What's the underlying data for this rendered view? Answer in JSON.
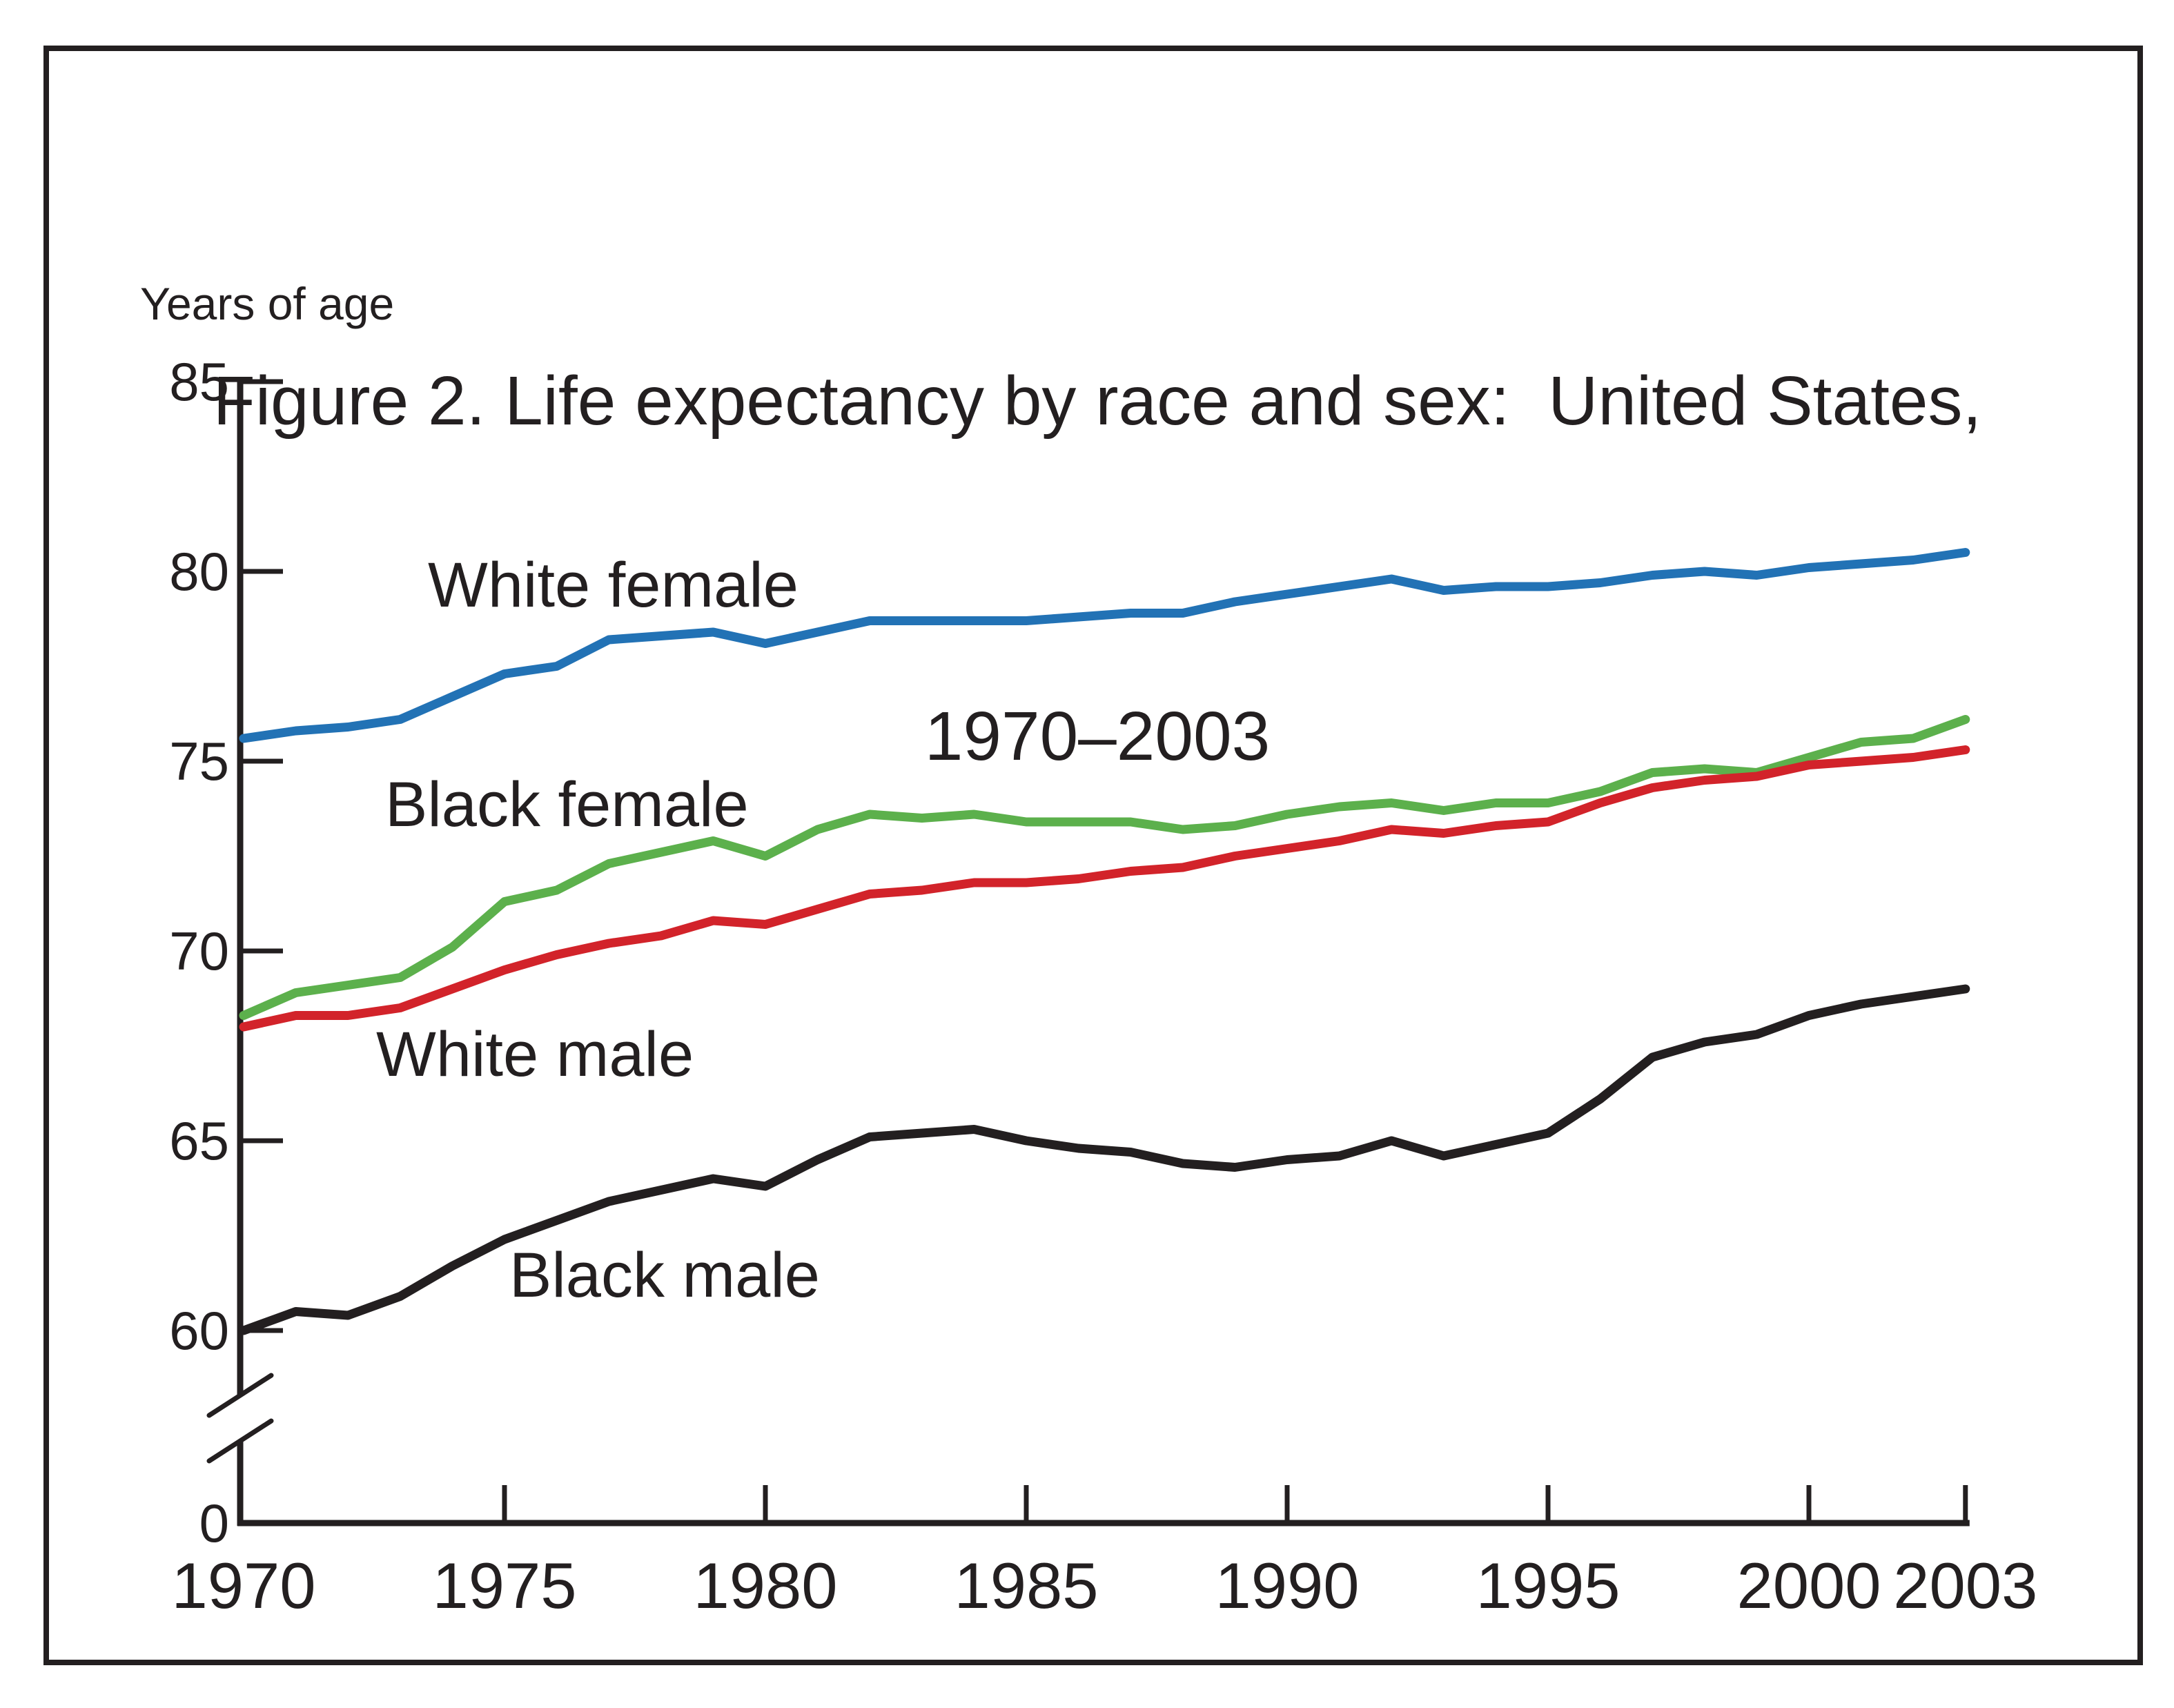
{
  "figure": {
    "title_line1": "Figure 2. Life expectancy by race and sex:  United States,",
    "title_line2": "1970–2003",
    "y_axis_label": "Years of age"
  },
  "chart_data": {
    "type": "line",
    "title": "Figure 2. Life expectancy by race and sex: United States, 1970–2003",
    "xlabel": "",
    "ylabel": "Years of age",
    "grid": false,
    "legend_position": "inline-labels",
    "axis_break_on_y": true,
    "ylim_displayed": [
      60,
      85
    ],
    "x": [
      1970,
      1971,
      1972,
      1973,
      1974,
      1975,
      1976,
      1977,
      1978,
      1979,
      1980,
      1981,
      1982,
      1983,
      1984,
      1985,
      1986,
      1987,
      1988,
      1989,
      1990,
      1991,
      1992,
      1993,
      1994,
      1995,
      1996,
      1997,
      1998,
      1999,
      2000,
      2001,
      2002,
      2003
    ],
    "xticks": [
      1970,
      1975,
      1980,
      1985,
      1990,
      1995,
      2000,
      2003
    ],
    "yticks": [
      85,
      80,
      75,
      70,
      65,
      60,
      0
    ],
    "series": [
      {
        "name": "White female",
        "color": "#2272b5",
        "values": [
          75.6,
          75.8,
          75.9,
          76.1,
          76.7,
          77.3,
          77.5,
          78.2,
          78.3,
          78.4,
          78.1,
          78.4,
          78.7,
          78.7,
          78.7,
          78.7,
          78.8,
          78.9,
          78.9,
          79.2,
          79.4,
          79.6,
          79.8,
          79.5,
          79.6,
          79.6,
          79.7,
          79.9,
          80.0,
          79.9,
          80.1,
          80.2,
          80.3,
          80.5
        ]
      },
      {
        "name": "Black female",
        "color": "#5cb04c",
        "values": [
          68.3,
          68.9,
          69.1,
          69.3,
          70.1,
          71.3,
          71.6,
          72.3,
          72.6,
          72.9,
          72.5,
          73.2,
          73.6,
          73.5,
          73.6,
          73.4,
          73.4,
          73.4,
          73.2,
          73.3,
          73.6,
          73.8,
          73.9,
          73.7,
          73.9,
          73.9,
          74.2,
          74.7,
          74.8,
          74.7,
          75.1,
          75.5,
          75.6,
          76.1
        ]
      },
      {
        "name": "White male",
        "color": "#d2232a",
        "values": [
          68.0,
          68.3,
          68.3,
          68.5,
          69.0,
          69.5,
          69.9,
          70.2,
          70.4,
          70.8,
          70.7,
          71.1,
          71.5,
          71.6,
          71.8,
          71.8,
          71.9,
          72.1,
          72.2,
          72.5,
          72.7,
          72.9,
          73.2,
          73.1,
          73.3,
          73.4,
          73.9,
          74.3,
          74.5,
          74.6,
          74.9,
          75.0,
          75.1,
          75.3
        ]
      },
      {
        "name": "Black male",
        "color": "#231f20",
        "values": [
          60.0,
          60.5,
          60.4,
          60.9,
          61.7,
          62.4,
          62.9,
          63.4,
          63.7,
          64.0,
          63.8,
          64.5,
          65.1,
          65.2,
          65.3,
          65.0,
          64.8,
          64.7,
          64.4,
          64.3,
          64.5,
          64.6,
          65.0,
          64.6,
          64.9,
          65.2,
          66.1,
          67.2,
          67.6,
          67.8,
          68.3,
          68.6,
          68.8,
          69.0
        ]
      }
    ]
  }
}
